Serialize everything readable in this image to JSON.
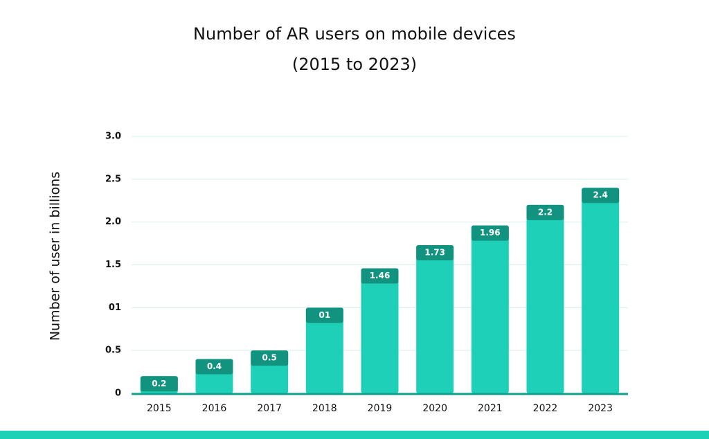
{
  "chart_data": {
    "type": "bar",
    "title": "Number of AR users on mobile devices",
    "subtitle": "(2015 to 2023)",
    "y_label": "Number of user in billions",
    "categories": [
      "2015",
      "2016",
      "2017",
      "2018",
      "2019",
      "2020",
      "2021",
      "2022",
      "2023"
    ],
    "values": [
      0.2,
      0.4,
      0.5,
      1,
      1.46,
      1.73,
      1.96,
      2.2,
      2.4
    ],
    "value_labels": [
      "0.2",
      "0.4",
      "0.5",
      "01",
      "1.46",
      "1.73",
      "1.96",
      "2.2",
      "2.4"
    ],
    "color": "#1fd0b9",
    "label_color": "#12937f",
    "ylim": [
      0,
      3
    ],
    "yticks": [
      0,
      0.5,
      {
        "value": 1,
        "label": "01"
      },
      1.5,
      {
        "value": 2,
        "label": "2.0"
      },
      2.5,
      {
        "value": 3,
        "label": "3.0"
      }
    ],
    "grid": true
  }
}
